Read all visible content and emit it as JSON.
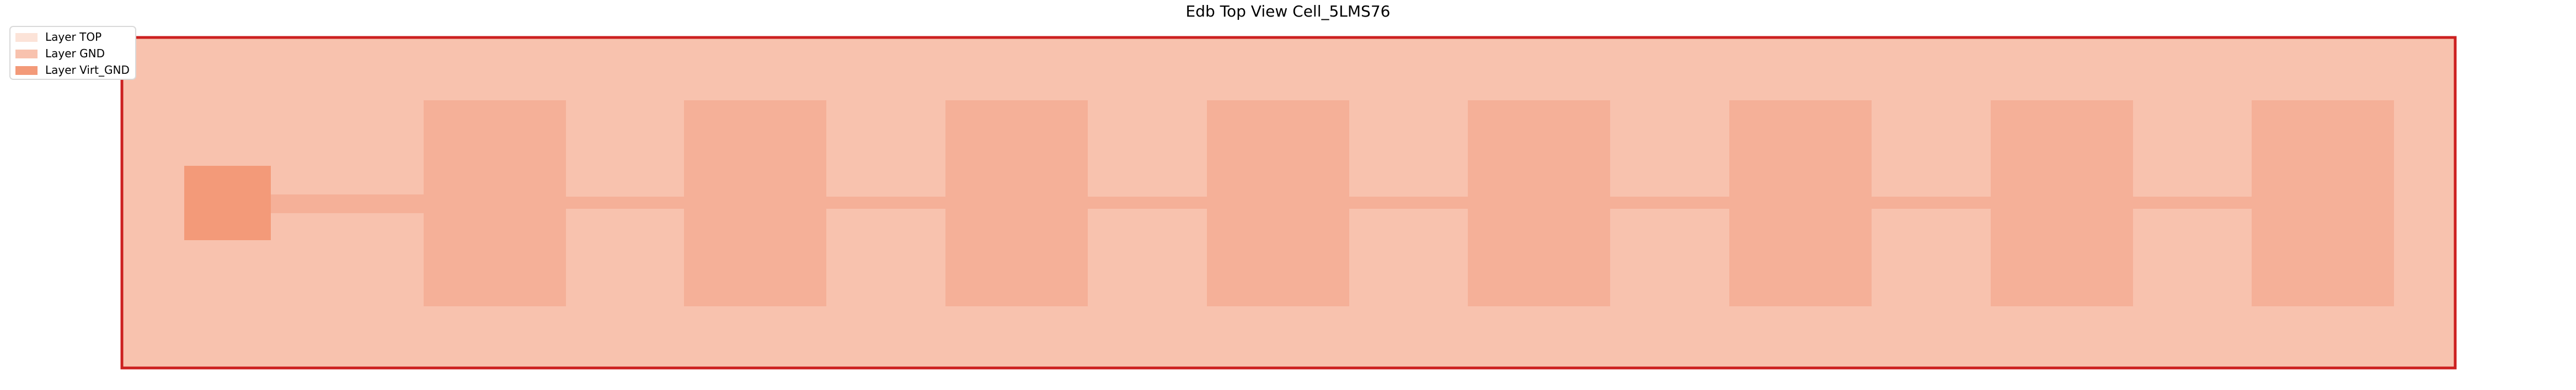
{
  "title": "Edb Top View Cell_5LMS76",
  "legend": {
    "position": "top-left",
    "items": [
      {
        "label": "Layer TOP",
        "color": "#fce3d8"
      },
      {
        "label": "Layer GND",
        "color": "#f8c2ae"
      },
      {
        "label": "Layer Virt_GND",
        "color": "#f39a79"
      }
    ]
  },
  "colors": {
    "board_fill": "#f8c2ae",
    "board_outline": "#cc2020",
    "pad_fill": "#f5b098",
    "port_fill": "#f39a79",
    "trace_fill": "#f5b098"
  },
  "layout": {
    "pad_count": 8
  }
}
